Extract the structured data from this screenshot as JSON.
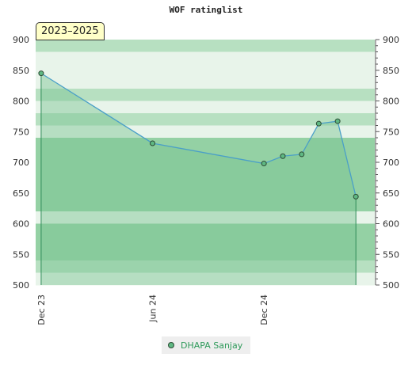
{
  "chart_data": {
    "type": "line",
    "title": "WOF ratinglist",
    "period_label": "2023–2025",
    "xlabel": "",
    "ylabel": "",
    "x_tick_labels": [
      "Dec 23",
      "Jun 24",
      "Dec 24"
    ],
    "x_tick_dates": [
      "2023-12-01",
      "2024-06-01",
      "2024-12-01"
    ],
    "x_range": [
      "2023-11-22",
      "2025-06-01"
    ],
    "ylim": [
      500,
      900
    ],
    "y_ticks": [
      500,
      550,
      600,
      650,
      700,
      750,
      800,
      850,
      900
    ],
    "y_axis_right": true,
    "grid": true,
    "legend_position": "bottom",
    "series": [
      {
        "name": "DHAPA Sanjay",
        "x": [
          "2023-12-01",
          "2024-06-01",
          "2024-12-01",
          "2025-01-01",
          "2025-02-01",
          "2025-03-01",
          "2025-04-01",
          "2025-05-01"
        ],
        "y": [
          845,
          731,
          698,
          710,
          713,
          763,
          767,
          644
        ],
        "color": "#4a9fc8",
        "fill_color": "#7ac492",
        "marker_color": "#5fb883"
      }
    ]
  },
  "colors": {
    "band_light": "#e8f4ea",
    "band_mid": "#b7e0c1",
    "band_dark": "#94d1a4",
    "axis": "#555555"
  }
}
